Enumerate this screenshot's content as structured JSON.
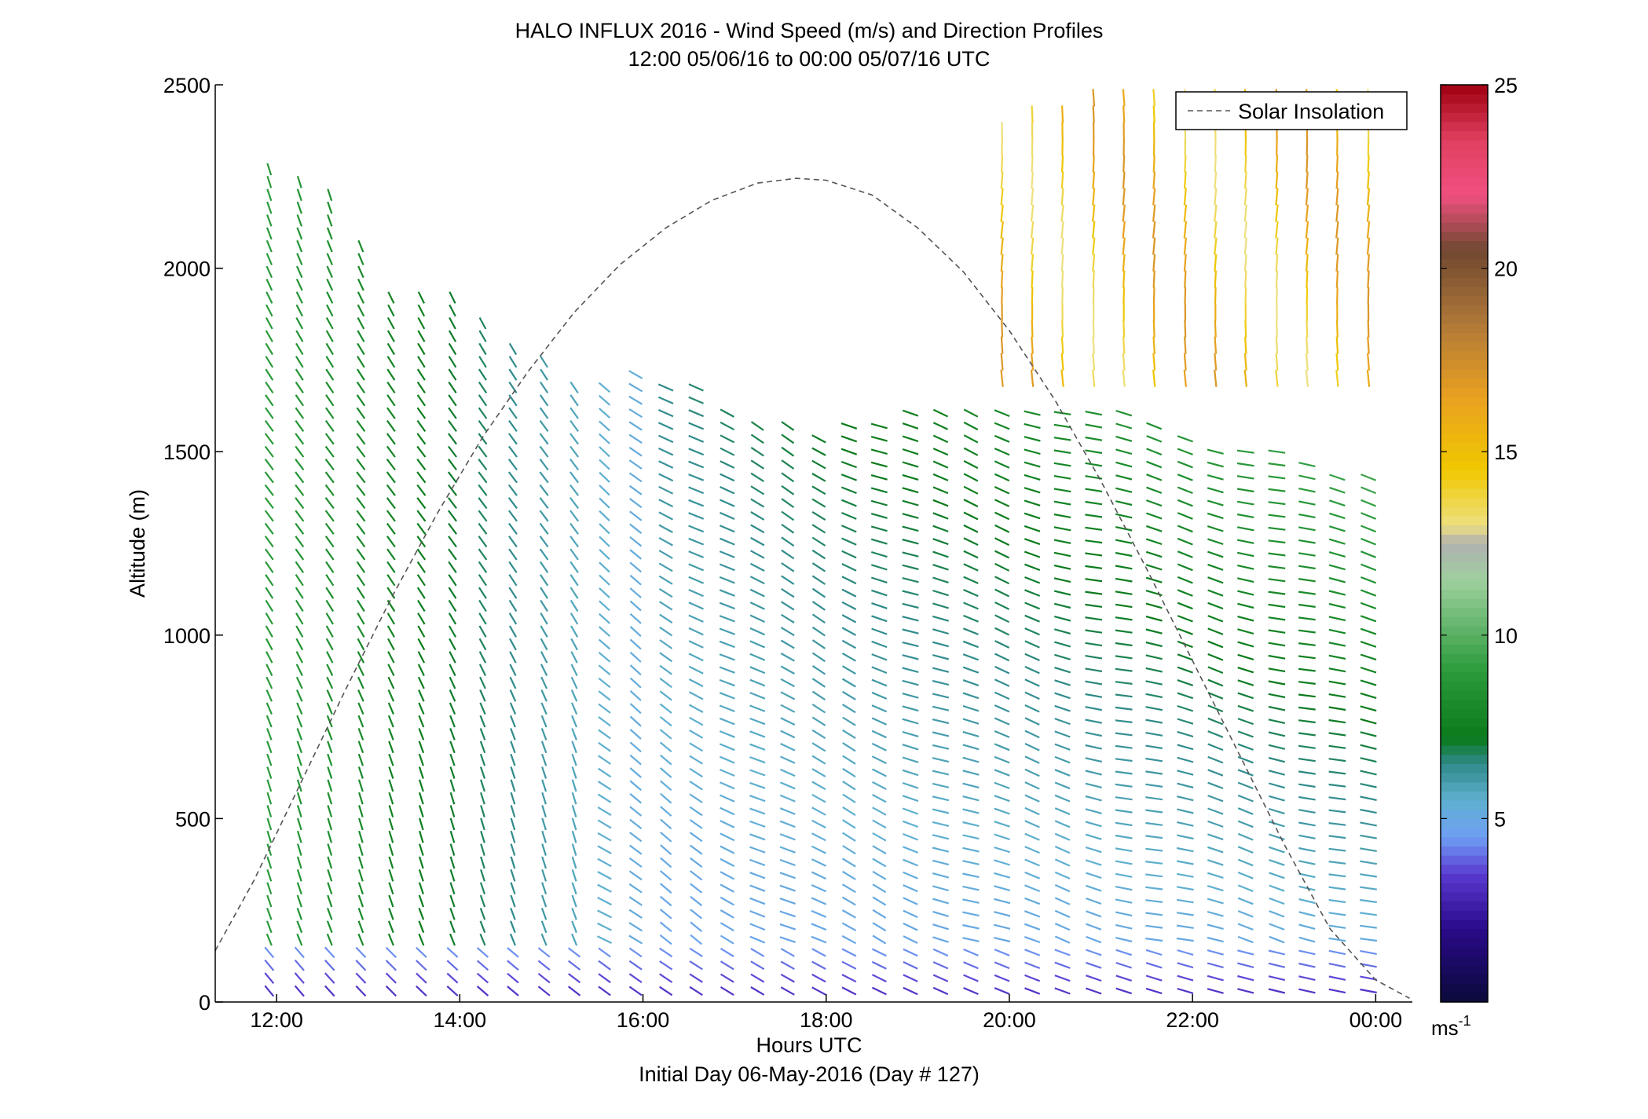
{
  "chart_data": {
    "type": "wind-barb-profile",
    "title": "HALO INFLUX 2016 - Wind Speed (m/s) and Direction Profiles",
    "subtitle": "12:00 05/06/16 to 00:00 05/07/16  UTC",
    "xlabel": "Hours UTC",
    "xlabel2": "Initial Day 06-May-2016 (Day # 127)",
    "ylabel": "Altitude (m)",
    "xlim": [
      11.33,
      24.4
    ],
    "ylim": [
      0,
      2500
    ],
    "x_ticks": [
      12,
      14,
      16,
      18,
      20,
      22,
      24
    ],
    "x_tick_labels": [
      "12:00",
      "14:00",
      "16:00",
      "18:00",
      "20:00",
      "22:00",
      "00:00"
    ],
    "y_ticks": [
      0,
      500,
      1000,
      1500,
      2000,
      2500
    ],
    "y_tick_labels": [
      "0",
      "500",
      "1000",
      "1500",
      "2000",
      "2500"
    ],
    "legend": {
      "label": "Solar Insolation",
      "placement": "top-right",
      "style": "dashed",
      "color": "#555555"
    },
    "colorbar": {
      "range": [
        0,
        25
      ],
      "ticks": [
        5,
        10,
        15,
        20,
        25
      ],
      "tick_labels": [
        "5",
        "10",
        "15",
        "20",
        "25"
      ],
      "unit_label": "ms",
      "unit_exponent": "-1",
      "stops": [
        {
          "v": 0,
          "c": "#0a0a3a"
        },
        {
          "v": 2,
          "c": "#2a0a8a"
        },
        {
          "v": 3.5,
          "c": "#5a3ad0"
        },
        {
          "v": 4.5,
          "c": "#6f9ff5"
        },
        {
          "v": 5.5,
          "c": "#5fb0d0"
        },
        {
          "v": 6.5,
          "c": "#2f8a8a"
        },
        {
          "v": 7.2,
          "c": "#0a7a1a"
        },
        {
          "v": 9,
          "c": "#2a9a3a"
        },
        {
          "v": 11.5,
          "c": "#9ed09e"
        },
        {
          "v": 12.5,
          "c": "#b0b0b0"
        },
        {
          "v": 13,
          "c": "#eee080"
        },
        {
          "v": 14.5,
          "c": "#f0c800"
        },
        {
          "v": 16.5,
          "c": "#e8a020"
        },
        {
          "v": 18.5,
          "c": "#b07838"
        },
        {
          "v": 20.5,
          "c": "#704830"
        },
        {
          "v": 22,
          "c": "#f05080"
        },
        {
          "v": 23.5,
          "c": "#e04060"
        },
        {
          "v": 25,
          "c": "#a00010"
        }
      ]
    },
    "solar_insolation": {
      "x": [
        11.33,
        11.75,
        12.25,
        12.75,
        13.25,
        13.75,
        14.25,
        14.75,
        15.25,
        15.75,
        16.25,
        16.75,
        17.25,
        17.67,
        18.0,
        18.5,
        19.0,
        19.5,
        20.0,
        20.5,
        21.0,
        21.5,
        22.0,
        22.5,
        23.0,
        23.5,
        24.0,
        24.37
      ],
      "y": [
        140,
        330,
        590,
        850,
        1100,
        1330,
        1540,
        1720,
        1880,
        2010,
        2110,
        2185,
        2232,
        2245,
        2240,
        2200,
        2110,
        1990,
        1830,
        1640,
        1420,
        1180,
        930,
        680,
        430,
        200,
        60,
        10
      ]
    },
    "profiles": {
      "times": [
        11.92,
        12.25,
        12.58,
        12.92,
        13.25,
        13.58,
        13.92,
        14.25,
        14.58,
        14.92,
        15.25,
        15.58,
        15.92,
        16.25,
        16.58,
        16.92,
        17.25,
        17.58,
        17.92,
        18.25,
        18.58,
        18.92,
        19.25,
        19.58,
        19.92,
        20.25,
        20.58,
        20.92,
        21.25,
        21.58,
        21.92,
        22.25,
        22.58,
        22.92,
        23.25,
        23.58,
        23.92
      ],
      "top_m": [
        2270,
        2240,
        2210,
        2080,
        1920,
        1920,
        1920,
        1850,
        1790,
        1750,
        1690,
        1700,
        1710,
        1700,
        1680,
        1620,
        1590,
        1580,
        1560,
        1570,
        1590,
        1610,
        1620,
        1620,
        1620,
        1630,
        1620,
        1620,
        1610,
        1600,
        1550,
        1530,
        1520,
        1500,
        1480,
        1450,
        1440
      ],
      "upper_top_m": [
        0,
        0,
        0,
        0,
        0,
        0,
        0,
        0,
        0,
        0,
        0,
        0,
        0,
        0,
        0,
        0,
        0,
        0,
        0,
        0,
        0,
        0,
        0,
        0,
        2400,
        2450,
        2450,
        2500,
        2500,
        2500,
        2500,
        2500,
        2500,
        2500,
        2500,
        2500,
        2500
      ],
      "level_spacing_m": 35,
      "wind_speed_ms_description": "low-level 2-5 m/s; mid 5-9 m/s; upper afternoon levels 12-18 m/s",
      "speed_by_height_and_time": {
        "surface_band_m": [
          0,
          150
        ],
        "surface_speed": 3,
        "mid_speed_morning": 9,
        "mid_speed_afternoon": 5,
        "mid_speed_evening": 8,
        "upper_speed": 15
      },
      "direction_deg_from": {
        "morning": 340,
        "afternoon_low": 330,
        "evening_low": 285,
        "evening_mid": 290,
        "upper": 360
      }
    }
  }
}
